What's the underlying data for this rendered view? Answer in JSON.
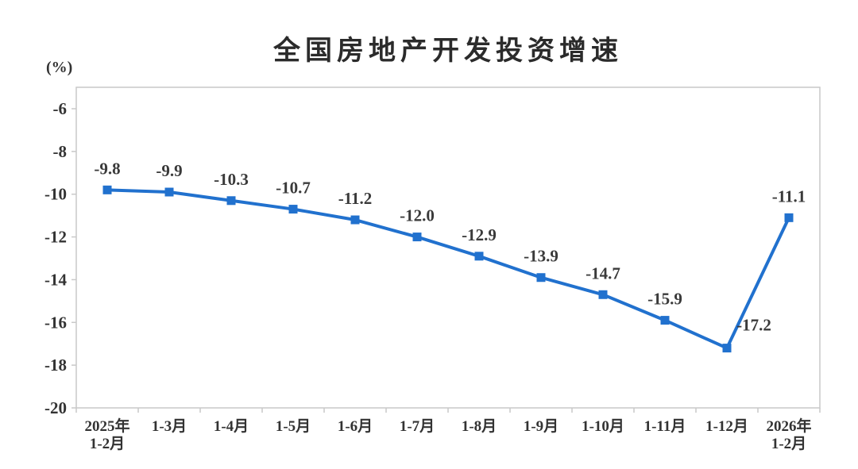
{
  "chart_data": {
    "type": "line",
    "title": "全国房地产开发投资增速",
    "unit_label": "(%)",
    "categories": [
      "2025年\n1-2月",
      "1-3月",
      "1-4月",
      "1-5月",
      "1-6月",
      "1-7月",
      "1-8月",
      "1-9月",
      "1-10月",
      "1-11月",
      "1-12月",
      "2026年\n1-2月"
    ],
    "values": [
      -9.8,
      -9.9,
      -10.3,
      -10.7,
      -11.2,
      -12.0,
      -12.9,
      -13.9,
      -14.7,
      -15.9,
      -17.2,
      -11.1
    ],
    "point_labels": [
      "-9.8",
      "-9.9",
      "-10.3",
      "-10.7",
      "-11.2",
      "-12.0",
      "-12.9",
      "-13.9",
      "-14.7",
      "-15.9",
      "-17.2",
      "-11.1"
    ],
    "xlabel": "",
    "ylabel": "(%)",
    "ylim": [
      -20,
      -5
    ],
    "yticks": [
      -6,
      -8,
      -10,
      -12,
      -14,
      -16,
      -18,
      -20
    ],
    "grid": false,
    "legend": "none",
    "line_color": "#2171ce",
    "marker": "square",
    "frame_color": "#c9c9c9",
    "text_color": "#333333"
  }
}
